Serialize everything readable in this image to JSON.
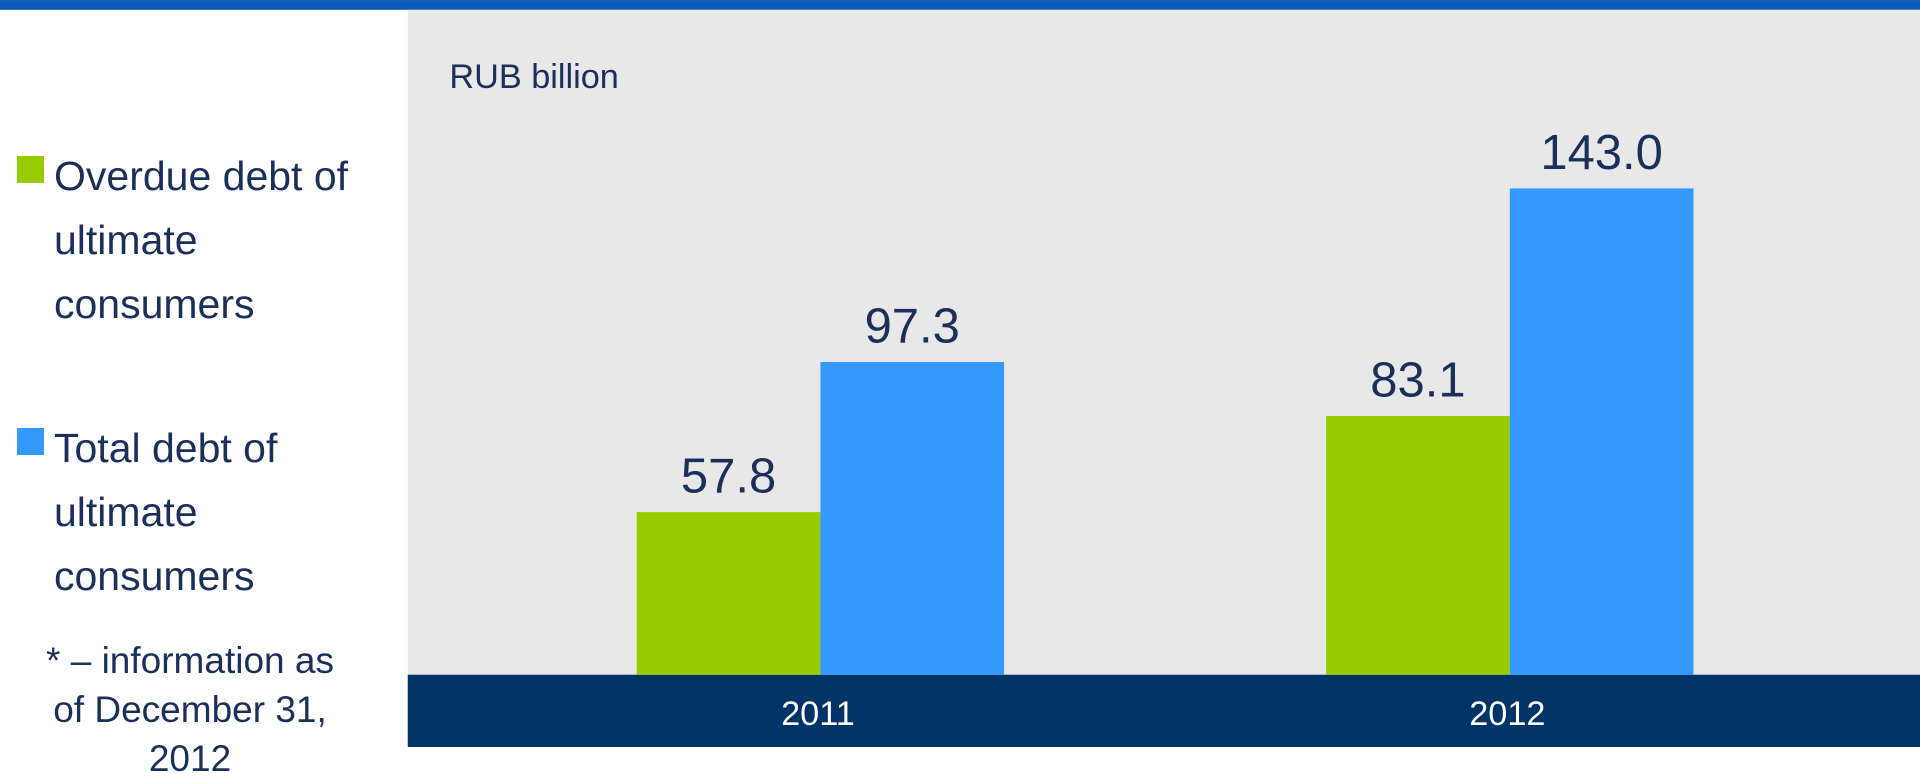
{
  "chart_data": {
    "type": "bar",
    "subtitle": "RUB billion",
    "categories": [
      "2011",
      "2012"
    ],
    "series": [
      {
        "name": "Overdue debt of ultimate consumers",
        "color": "#99cc00",
        "values": [
          57.8,
          83.1
        ],
        "value_labels": [
          "57.8",
          "83.1"
        ]
      },
      {
        "name": "Total debt of ultimate consumers",
        "color": "#3399ff",
        "values": [
          97.3,
          143
        ],
        "value_labels": [
          "97.3",
          "143.0"
        ]
      }
    ],
    "ylim": [
      15,
      190
    ],
    "note": "* – information as of December 31, 2012"
  }
}
